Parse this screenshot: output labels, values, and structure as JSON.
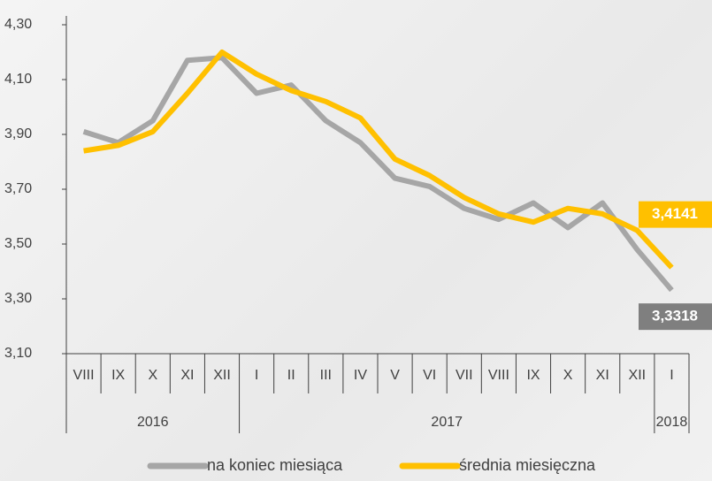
{
  "chart_data": {
    "type": "line",
    "categories": [
      "VIII",
      "IX",
      "X",
      "XI",
      "XII",
      "I",
      "II",
      "III",
      "IV",
      "V",
      "VI",
      "VII",
      "VIII",
      "IX",
      "X",
      "XI",
      "XII",
      "I"
    ],
    "category_groups": [
      "2016",
      null,
      null,
      null,
      null,
      "2017",
      null,
      null,
      null,
      null,
      null,
      null,
      null,
      null,
      null,
      null,
      null,
      "2018"
    ],
    "series": [
      {
        "name": "na koniec miesiąca",
        "color": "#a6a6a6",
        "values": [
          3.91,
          3.87,
          3.95,
          4.17,
          4.18,
          4.05,
          4.08,
          3.95,
          3.87,
          3.74,
          3.71,
          3.63,
          3.59,
          3.65,
          3.56,
          3.65,
          3.48,
          3.3318
        ],
        "value_labels": [
          null,
          null,
          null,
          null,
          null,
          null,
          null,
          null,
          null,
          null,
          null,
          null,
          null,
          null,
          null,
          null,
          null,
          "3,3318"
        ]
      },
      {
        "name": "średnia miesięczna",
        "color": "#ffc000",
        "values": [
          3.84,
          3.86,
          3.91,
          4.05,
          4.2,
          4.12,
          4.06,
          4.02,
          3.96,
          3.81,
          3.75,
          3.67,
          3.61,
          3.58,
          3.63,
          3.61,
          3.55,
          3.4141
        ],
        "value_labels": [
          null,
          null,
          null,
          null,
          null,
          null,
          null,
          null,
          null,
          null,
          null,
          null,
          null,
          null,
          null,
          null,
          null,
          "3,4141"
        ]
      }
    ],
    "ylim": [
      3.1,
      4.3
    ],
    "yticks": [
      {
        "value": 3.1,
        "label": "3,10"
      },
      {
        "value": 3.3,
        "label": "3,30"
      },
      {
        "value": 3.5,
        "label": "3,50"
      },
      {
        "value": 3.7,
        "label": "3,70"
      },
      {
        "value": 3.9,
        "label": "3,90"
      },
      {
        "value": 4.1,
        "label": "4,10"
      },
      {
        "value": 4.3,
        "label": "4,30"
      }
    ],
    "grid": false,
    "legend": "bottom"
  }
}
